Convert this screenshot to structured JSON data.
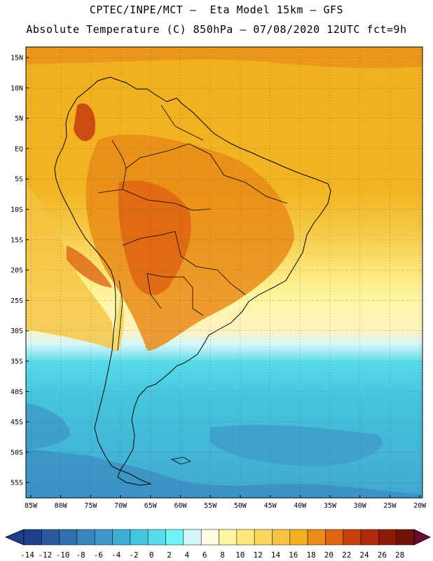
{
  "header": {
    "line1": "CPTEC/INPE/MCT –  Eta Model 15km – GFS",
    "line2": "Absolute Temperature (C) 850hPa – 07/08/2020 12UTC fct=9h"
  },
  "map": {
    "lat_labels": [
      "15N",
      "10N",
      "5N",
      "EQ",
      "5S",
      "10S",
      "15S",
      "20S",
      "25S",
      "30S",
      "35S",
      "40S",
      "45S",
      "50S",
      "55S"
    ],
    "lon_labels": [
      "85W",
      "80W",
      "75W",
      "70W",
      "65W",
      "60W",
      "55W",
      "50W",
      "45W",
      "40W",
      "35W",
      "30W",
      "25W",
      "20W"
    ]
  },
  "colorbar": {
    "labels": [
      "-14",
      "-12",
      "-10",
      "-8",
      "-6",
      "-4",
      "-2",
      "0",
      "2",
      "4",
      "6",
      "8",
      "10",
      "12",
      "14",
      "16",
      "18",
      "20",
      "22",
      "24",
      "26",
      "28"
    ],
    "colors": [
      "#1e3f8c",
      "#2c5a9f",
      "#336fae",
      "#3a84be",
      "#3f98c8",
      "#3eadd2",
      "#45c4dd",
      "#57dae9",
      "#6ff5f5",
      "#d3f6fb",
      "#fffbe3",
      "#fff6a4",
      "#fde77a",
      "#fad65c",
      "#f5c341",
      "#f0b020",
      "#e98b18",
      "#df6413",
      "#c94010",
      "#ad2a0c",
      "#8c1c0a",
      "#6f1208"
    ],
    "low_color": "#1e3f8c",
    "high_color": "#6a0a32"
  }
}
